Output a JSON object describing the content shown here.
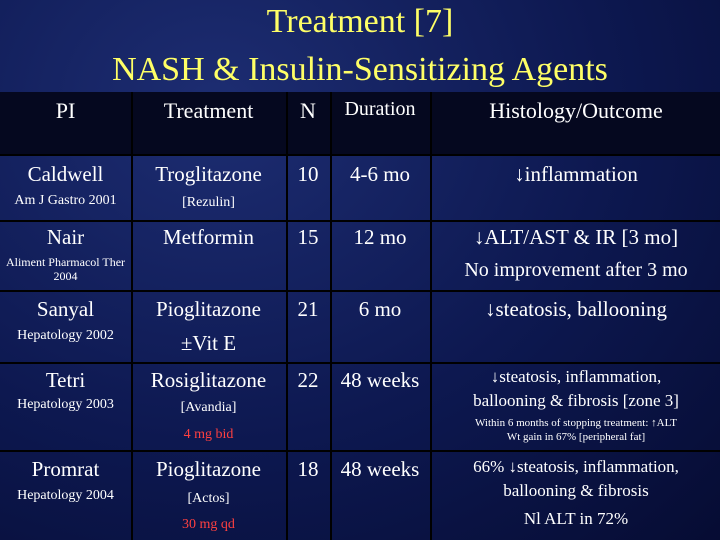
{
  "title": {
    "line1": "Treatment [7]",
    "line2": "NASH & Insulin-Sensitizing Agents"
  },
  "headers": {
    "pi": "PI",
    "treatment": "Treatment",
    "n": "N",
    "duration": "Duration",
    "outcome": "Histology/Outcome"
  },
  "rows": [
    {
      "pi": "Caldwell",
      "ref": "Am J Gastro 2001",
      "drug": "Troglitazone",
      "sub": "[Rezulin]",
      "n": "10",
      "duration": "4-6 mo",
      "outcome1": "↓inflammation"
    },
    {
      "pi": "Nair",
      "ref": "Aliment Pharmacol Ther 2004",
      "drug": "Metformin",
      "n": "15",
      "duration": "12 mo",
      "outcome1": "↓ALT/AST & IR [3 mo]",
      "outcome2": "No improvement after 3 mo"
    },
    {
      "pi": "Sanyal",
      "ref": "Hepatology 2002",
      "drug": "Pioglitazone",
      "sub": "±Vit E",
      "n": "21",
      "duration": "6 mo",
      "outcome1": "↓steatosis, ballooning"
    },
    {
      "pi": "Tetri",
      "ref": "Hepatology 2003",
      "drug": "Rosiglitazone",
      "sub": "[Avandia]",
      "dose": "4 mg bid",
      "n": "22",
      "duration": "48 weeks",
      "outcome1": "↓steatosis, inflammation,",
      "outcome2": "ballooning & fibrosis [zone 3]",
      "note1": "Within 6 months of stopping treatment: ↑ALT",
      "note2": "Wt gain in 67% [peripheral fat]"
    },
    {
      "pi": "Promrat",
      "ref": "Hepatology 2004",
      "drug": "Pioglitazone",
      "sub": "[Actos]",
      "dose": "30 mg qd",
      "n": "18",
      "duration": "48 weeks",
      "outcome1": "66% ↓steatosis, inflammation,",
      "outcome2": "ballooning & fibrosis",
      "outcome3": "Nl ALT in 72%"
    }
  ],
  "colors": {
    "title": "#ffff66",
    "dose": "#ff4040",
    "background": "#0d1850"
  }
}
